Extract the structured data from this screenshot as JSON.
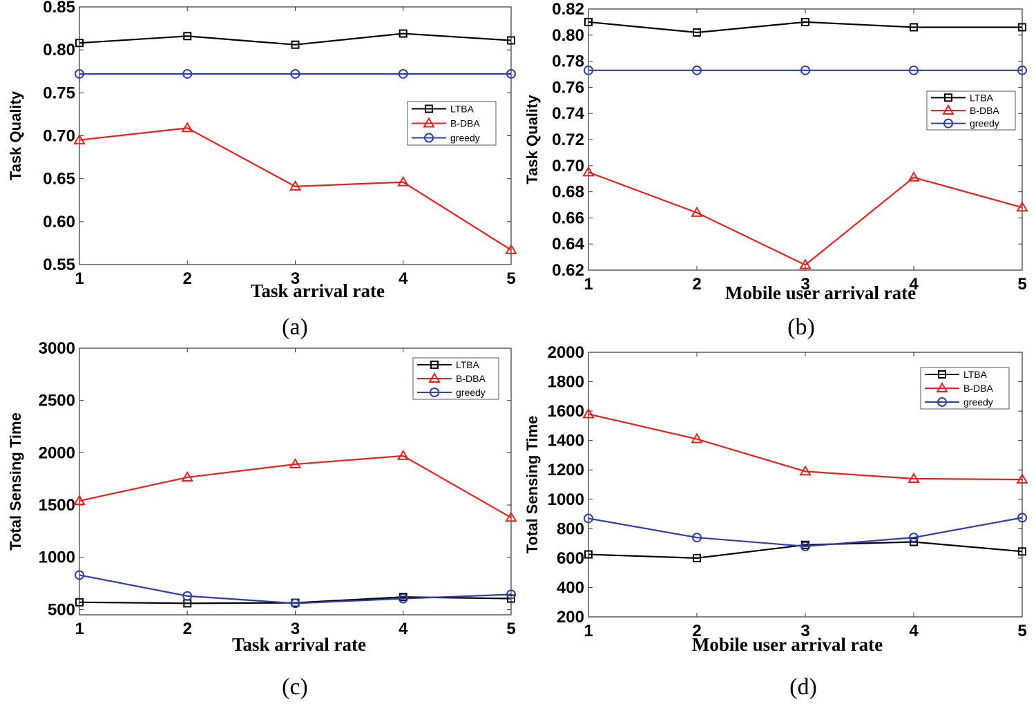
{
  "chart_data": [
    {
      "type": "line",
      "caption": "(a)",
      "xlabel": "Task arrival rate",
      "ylabel": "Task Quality",
      "x": [
        1,
        2,
        3,
        4,
        5
      ],
      "xticks": [
        "1",
        "2",
        "3",
        "4",
        "5"
      ],
      "ylim": [
        0.55,
        0.85
      ],
      "yticks": [
        "0.55",
        "0.60",
        "0.65",
        "0.70",
        "0.75",
        "0.80",
        "0.85"
      ],
      "yticks_values": [
        0.55,
        0.6,
        0.65,
        0.7,
        0.75,
        0.8,
        0.85
      ],
      "legend_position": "center-right",
      "series": [
        {
          "name": "LTBA",
          "color": "#000000",
          "marker": "square",
          "values": [
            0.808,
            0.816,
            0.806,
            0.819,
            0.811
          ]
        },
        {
          "name": "B-DBA",
          "color": "#e8211f",
          "marker": "triangle",
          "values": [
            0.695,
            0.709,
            0.641,
            0.646,
            0.567
          ]
        },
        {
          "name": "greedy",
          "color": "#2e3ea8",
          "marker": "circle",
          "values": [
            0.772,
            0.772,
            0.772,
            0.772,
            0.772
          ]
        }
      ]
    },
    {
      "type": "line",
      "caption": "(b)",
      "xlabel": "Mobile user arrival rate",
      "ylabel": "Task Quality",
      "x": [
        1,
        2,
        3,
        4,
        5
      ],
      "xticks": [
        "1",
        "2",
        "3",
        "4",
        "5"
      ],
      "ylim": [
        0.62,
        0.82
      ],
      "yticks": [
        "0.62",
        "0.64",
        "0.66",
        "0.68",
        "0.70",
        "0.72",
        "0.74",
        "0.76",
        "0.78",
        "0.80",
        "0.82"
      ],
      "yticks_values": [
        0.62,
        0.64,
        0.66,
        0.68,
        0.7,
        0.72,
        0.74,
        0.76,
        0.78,
        0.8,
        0.82
      ],
      "legend_position": "upper-right",
      "series": [
        {
          "name": "LTBA",
          "color": "#000000",
          "marker": "square",
          "values": [
            0.81,
            0.802,
            0.81,
            0.806,
            0.806
          ]
        },
        {
          "name": "B-DBA",
          "color": "#e8211f",
          "marker": "triangle",
          "values": [
            0.695,
            0.664,
            0.624,
            0.691,
            0.668
          ]
        },
        {
          "name": "greedy",
          "color": "#2e3ea8",
          "marker": "circle",
          "values": [
            0.773,
            0.773,
            0.773,
            0.773,
            0.773
          ]
        }
      ]
    },
    {
      "type": "line",
      "caption": "(c)",
      "xlabel": "Task arrival rate",
      "ylabel": "Total Sensing Time",
      "x": [
        1,
        2,
        3,
        4,
        5
      ],
      "xticks": [
        "1",
        "2",
        "3",
        "4",
        "5"
      ],
      "ylim": [
        450,
        3000
      ],
      "yticks": [
        "500",
        "1000",
        "1500",
        "2000",
        "2500",
        "3000"
      ],
      "yticks_values": [
        500,
        1000,
        1500,
        2000,
        2500,
        3000
      ],
      "legend_position": "upper-right",
      "series": [
        {
          "name": "LTBA",
          "color": "#000000",
          "marker": "square",
          "values": [
            570,
            560,
            565,
            620,
            605
          ]
        },
        {
          "name": "B-DBA",
          "color": "#e8211f",
          "marker": "triangle",
          "values": [
            1540,
            1765,
            1890,
            1970,
            1380
          ]
        },
        {
          "name": "greedy",
          "color": "#2e3ea8",
          "marker": "circle",
          "values": [
            830,
            630,
            560,
            605,
            645
          ]
        }
      ]
    },
    {
      "type": "line",
      "caption": "(d)",
      "xlabel": "Mobile user  arrival rate",
      "ylabel": "Total Sensing Time",
      "x": [
        1,
        2,
        3,
        4,
        5
      ],
      "xticks": [
        "1",
        "2",
        "3",
        "4",
        "5"
      ],
      "ylim": [
        200,
        2000
      ],
      "yticks": [
        "200",
        "400",
        "600",
        "800",
        "1000",
        "1200",
        "1400",
        "1600",
        "1800",
        "2000"
      ],
      "yticks_values": [
        200,
        400,
        600,
        800,
        1000,
        1200,
        1400,
        1600,
        1800,
        2000
      ],
      "legend_position": "upper-right",
      "series": [
        {
          "name": "LTBA",
          "color": "#000000",
          "marker": "square",
          "values": [
            625,
            600,
            690,
            710,
            645
          ]
        },
        {
          "name": "B-DBA",
          "color": "#e8211f",
          "marker": "triangle",
          "values": [
            1580,
            1410,
            1190,
            1140,
            1135
          ]
        },
        {
          "name": "greedy",
          "color": "#2e3ea8",
          "marker": "circle",
          "values": [
            870,
            740,
            680,
            740,
            875
          ]
        }
      ]
    }
  ]
}
